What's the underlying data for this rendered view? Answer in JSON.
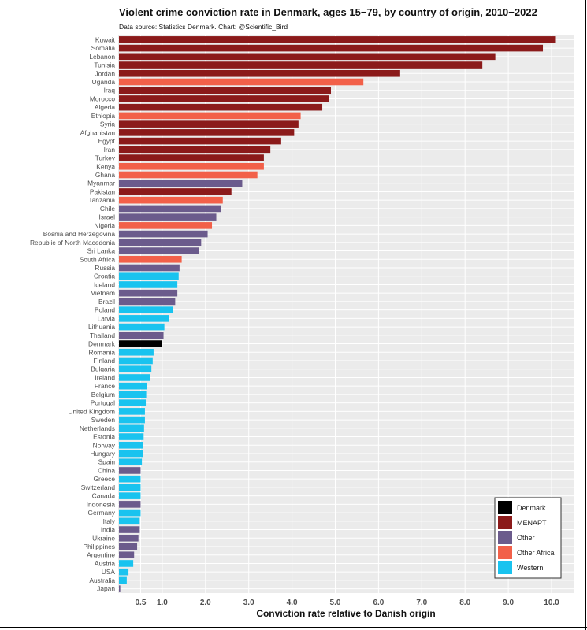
{
  "chart_data": {
    "type": "bar",
    "orientation": "horizontal",
    "title": "Violent crime conviction rate in Denmark, ages 15−79, by country of origin, 2010−2022",
    "subtitle": "Data source: Statistics Denmark. Chart: @Scientific_Bird",
    "xlabel": "Conviction rate relative to Danish origin",
    "ylabel": "",
    "xlim": [
      0,
      10.3
    ],
    "xticks": [
      "0.5",
      "1.0",
      "2.0",
      "3.0",
      "4.0",
      "5.0",
      "6.0",
      "7.0",
      "8.0",
      "9.0",
      "10.0"
    ],
    "grid": true,
    "legend_position": "bottom-right",
    "legend": [
      {
        "label": "Denmark",
        "color": "#000000"
      },
      {
        "label": "MENAPT",
        "color": "#8b1a1a"
      },
      {
        "label": "Other",
        "color": "#6b5b8c"
      },
      {
        "label": "Other Africa",
        "color": "#f26049"
      },
      {
        "label": "Western",
        "color": "#19c3ef"
      }
    ],
    "bars": [
      {
        "country": "Kuwait",
        "value": 10.1,
        "group": "MENAPT"
      },
      {
        "country": "Somalia",
        "value": 9.8,
        "group": "MENAPT"
      },
      {
        "country": "Lebanon",
        "value": 8.7,
        "group": "MENAPT"
      },
      {
        "country": "Tunisia",
        "value": 8.4,
        "group": "MENAPT"
      },
      {
        "country": "Jordan",
        "value": 6.5,
        "group": "MENAPT"
      },
      {
        "country": "Uganda",
        "value": 5.65,
        "group": "Other Africa"
      },
      {
        "country": "Iraq",
        "value": 4.9,
        "group": "MENAPT"
      },
      {
        "country": "Morocco",
        "value": 4.85,
        "group": "MENAPT"
      },
      {
        "country": "Algeria",
        "value": 4.7,
        "group": "MENAPT"
      },
      {
        "country": "Ethiopia",
        "value": 4.2,
        "group": "Other Africa"
      },
      {
        "country": "Syria",
        "value": 4.15,
        "group": "MENAPT"
      },
      {
        "country": "Afghanistan",
        "value": 4.05,
        "group": "MENAPT"
      },
      {
        "country": "Egypt",
        "value": 3.75,
        "group": "MENAPT"
      },
      {
        "country": "Iran",
        "value": 3.5,
        "group": "MENAPT"
      },
      {
        "country": "Turkey",
        "value": 3.35,
        "group": "MENAPT"
      },
      {
        "country": "Kenya",
        "value": 3.35,
        "group": "Other Africa"
      },
      {
        "country": "Ghana",
        "value": 3.2,
        "group": "Other Africa"
      },
      {
        "country": "Myanmar",
        "value": 2.85,
        "group": "Other"
      },
      {
        "country": "Pakistan",
        "value": 2.6,
        "group": "MENAPT"
      },
      {
        "country": "Tanzania",
        "value": 2.4,
        "group": "Other Africa"
      },
      {
        "country": "Chile",
        "value": 2.35,
        "group": "Other"
      },
      {
        "country": "Israel",
        "value": 2.25,
        "group": "Other"
      },
      {
        "country": "Nigeria",
        "value": 2.15,
        "group": "Other Africa"
      },
      {
        "country": "Bosnia and Herzegovina",
        "value": 2.05,
        "group": "Other"
      },
      {
        "country": "Republic of North Macedonia",
        "value": 1.9,
        "group": "Other"
      },
      {
        "country": "Sri Lanka",
        "value": 1.85,
        "group": "Other"
      },
      {
        "country": "South Africa",
        "value": 1.45,
        "group": "Other Africa"
      },
      {
        "country": "Russia",
        "value": 1.4,
        "group": "Other"
      },
      {
        "country": "Croatia",
        "value": 1.38,
        "group": "Western"
      },
      {
        "country": "Iceland",
        "value": 1.35,
        "group": "Western"
      },
      {
        "country": "Vietnam",
        "value": 1.35,
        "group": "Other"
      },
      {
        "country": "Brazil",
        "value": 1.3,
        "group": "Other"
      },
      {
        "country": "Poland",
        "value": 1.25,
        "group": "Western"
      },
      {
        "country": "Latvia",
        "value": 1.15,
        "group": "Western"
      },
      {
        "country": "Lithuania",
        "value": 1.05,
        "group": "Western"
      },
      {
        "country": "Thailand",
        "value": 1.03,
        "group": "Other"
      },
      {
        "country": "Denmark",
        "value": 1.0,
        "group": "Denmark"
      },
      {
        "country": "Romania",
        "value": 0.8,
        "group": "Western"
      },
      {
        "country": "Finland",
        "value": 0.78,
        "group": "Western"
      },
      {
        "country": "Bulgaria",
        "value": 0.75,
        "group": "Western"
      },
      {
        "country": "Ireland",
        "value": 0.72,
        "group": "Western"
      },
      {
        "country": "France",
        "value": 0.65,
        "group": "Western"
      },
      {
        "country": "Belgium",
        "value": 0.63,
        "group": "Western"
      },
      {
        "country": "Portugal",
        "value": 0.62,
        "group": "Western"
      },
      {
        "country": "United Kingdom",
        "value": 0.6,
        "group": "Western"
      },
      {
        "country": "Sweden",
        "value": 0.6,
        "group": "Western"
      },
      {
        "country": "Netherlands",
        "value": 0.58,
        "group": "Western"
      },
      {
        "country": "Estonia",
        "value": 0.57,
        "group": "Western"
      },
      {
        "country": "Norway",
        "value": 0.55,
        "group": "Western"
      },
      {
        "country": "Hungary",
        "value": 0.55,
        "group": "Western"
      },
      {
        "country": "Spain",
        "value": 0.53,
        "group": "Western"
      },
      {
        "country": "China",
        "value": 0.5,
        "group": "Other"
      },
      {
        "country": "Greece",
        "value": 0.5,
        "group": "Western"
      },
      {
        "country": "Switzerland",
        "value": 0.5,
        "group": "Western"
      },
      {
        "country": "Canada",
        "value": 0.5,
        "group": "Western"
      },
      {
        "country": "Indonesia",
        "value": 0.5,
        "group": "Other"
      },
      {
        "country": "Germany",
        "value": 0.5,
        "group": "Western"
      },
      {
        "country": "Italy",
        "value": 0.48,
        "group": "Western"
      },
      {
        "country": "India",
        "value": 0.48,
        "group": "Other"
      },
      {
        "country": "Ukraine",
        "value": 0.45,
        "group": "Other"
      },
      {
        "country": "Philippines",
        "value": 0.42,
        "group": "Other"
      },
      {
        "country": "Argentine",
        "value": 0.35,
        "group": "Other"
      },
      {
        "country": "Austria",
        "value": 0.33,
        "group": "Western"
      },
      {
        "country": "USA",
        "value": 0.22,
        "group": "Western"
      },
      {
        "country": "Australia",
        "value": 0.18,
        "group": "Western"
      },
      {
        "country": "Japan",
        "value": 0.03,
        "group": "Other"
      }
    ]
  }
}
